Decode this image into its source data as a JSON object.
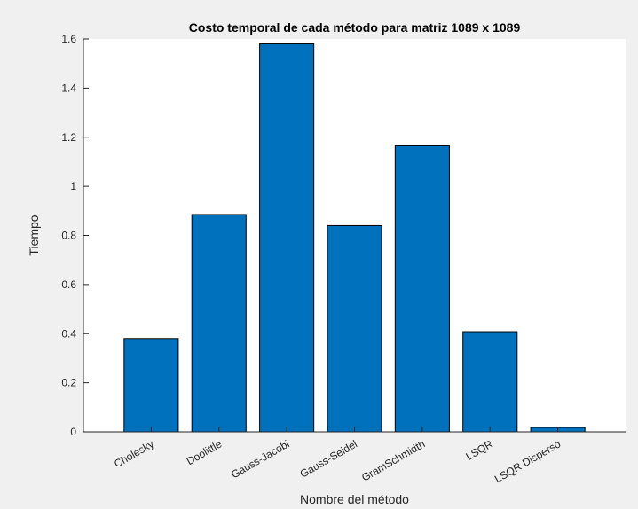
{
  "window": {
    "background": "#f0f0f0"
  },
  "chart_data": {
    "type": "bar",
    "title": "Costo temporal de cada método para matriz 1089 x 1089",
    "xlabel": "Nombre del método",
    "ylabel": "Tiempo",
    "categories": [
      "Cholesky",
      "Doolittle",
      "Gauss-Jacobi",
      "Gauss-Seidel",
      "GramSchmidth",
      "LSQR",
      "LSQR Disperso"
    ],
    "values": [
      0.38,
      0.885,
      1.58,
      0.84,
      1.165,
      0.408,
      0.018
    ],
    "ylim": [
      0,
      1.6
    ],
    "yticks": [
      0,
      0.2,
      0.4,
      0.6,
      0.8,
      1,
      1.2,
      1.4,
      1.6
    ],
    "ytick_labels": [
      "0",
      "0.2",
      "0.4",
      "0.6",
      "0.8",
      "1",
      "1.2",
      "1.4",
      "1.6"
    ],
    "xtick_rotation_deg": -30,
    "grid": false,
    "legend": false,
    "colors": {
      "bar_fill": "#0072bd",
      "bar_edge": "#000000",
      "axes_background": "#ffffff",
      "axes_color": "#262626",
      "figure_background": "#f0f0f0"
    }
  }
}
